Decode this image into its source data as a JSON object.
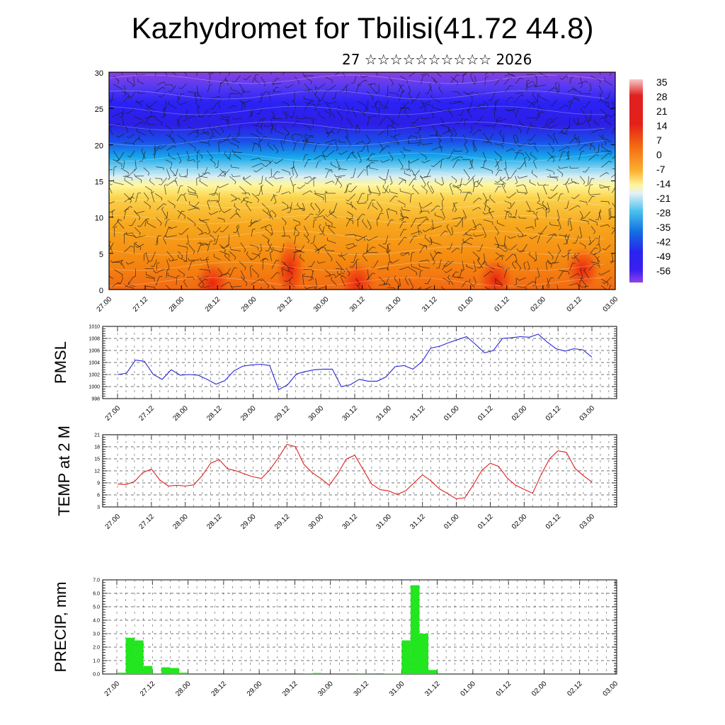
{
  "title": "Kazhydromet for Tbilisi(41.72 44.8)",
  "subtitle": "27 ☆☆☆☆☆☆☆☆☆☆ 2026",
  "colors": {
    "pmsl_line": "#2626d9",
    "temp_line": "#e02020",
    "precip_bar": "#22e61e"
  },
  "chart_data": [
    {
      "type": "heatmap",
      "name": "vertical cross-section",
      "title": "",
      "ylabel": "",
      "ylim": [
        0,
        30
      ],
      "yticks": [
        "0",
        "5",
        "10",
        "15",
        "20",
        "25",
        "30"
      ],
      "time_labels": [
        "27.00",
        "27.12",
        "28.00",
        "28.12",
        "29.00",
        "29.12",
        "30.00",
        "30.12",
        "31.00",
        "31.12",
        "01.00",
        "01.12",
        "02.00",
        "02.12",
        "03.00"
      ],
      "colorbar": {
        "labels": [
          "35",
          "28",
          "21",
          "14",
          "7",
          "0",
          "-7",
          "-14",
          "-21",
          "-28",
          "-35",
          "-42",
          "-49",
          "-56"
        ],
        "range": [
          -60,
          38
        ]
      }
    },
    {
      "type": "line",
      "name": "PMSL",
      "ylabel": "PMSL",
      "ylim": [
        998,
        1010
      ],
      "yticks": [
        "998",
        "1000",
        "1002",
        "1004",
        "1006",
        "1008",
        "1010"
      ],
      "x_labels": [
        "27.00",
        "27.12",
        "28.00",
        "28.12",
        "29.00",
        "29.12",
        "30.00",
        "30.12",
        "31.00",
        "31.12",
        "01.00",
        "01.12",
        "02.00",
        "02.12",
        "03.00"
      ],
      "values": [
        1002.0,
        1002.2,
        1004.4,
        1004.2,
        1002.0,
        1001.2,
        1002.8,
        1001.9,
        1002.0,
        1001.9,
        1001.2,
        1000.4,
        1001.0,
        1002.6,
        1003.4,
        1003.6,
        1003.7,
        1003.5,
        999.5,
        1000.3,
        1002.1,
        1002.5,
        1002.8,
        1002.9,
        1002.9,
        1000.0,
        1000.3,
        1001.2,
        1000.9,
        1000.9,
        1001.6,
        1003.3,
        1003.5,
        1002.9,
        1004.1,
        1006.4,
        1006.7,
        1007.3,
        1007.8,
        1008.3,
        1007.0,
        1005.6,
        1006.0,
        1008.0,
        1008.1,
        1008.3,
        1008.2,
        1008.7,
        1007.4,
        1006.3,
        1005.9,
        1006.3,
        1006.1,
        1004.9
      ]
    },
    {
      "type": "line",
      "name": "TEMP at 2 M",
      "ylabel": "TEMP at 2 M",
      "ylim": [
        3,
        21
      ],
      "yticks": [
        "3",
        "6",
        "9",
        "12",
        "15",
        "18",
        "21"
      ],
      "x_labels": [
        "27.00",
        "27.12",
        "28.00",
        "28.12",
        "29.00",
        "29.12",
        "30.00",
        "30.12",
        "31.00",
        "31.12",
        "01.00",
        "01.12",
        "02.00",
        "02.12",
        "03.00"
      ],
      "values": [
        8.7,
        8.6,
        9.3,
        11.6,
        12.4,
        9.7,
        8.2,
        8.4,
        8.2,
        8.5,
        10.8,
        13.9,
        14.8,
        12.5,
        12.0,
        11.2,
        10.5,
        10.1,
        12.3,
        15.3,
        18.6,
        18.0,
        13.6,
        11.5,
        10.1,
        8.4,
        11.3,
        14.9,
        15.9,
        12.3,
        8.7,
        7.3,
        7.0,
        6.1,
        7.0,
        9.0,
        11.0,
        9.5,
        7.5,
        6.3,
        5.0,
        5.3,
        8.5,
        12.1,
        13.9,
        13.1,
        10.2,
        8.4,
        7.4,
        6.4,
        11.0,
        15.0,
        17.0,
        16.6,
        12.6,
        10.8,
        9.2
      ]
    },
    {
      "type": "bar",
      "name": "PRECIP, mm",
      "ylabel": "PRECIP, mm",
      "ylim": [
        0,
        7
      ],
      "yticks": [
        "0.0",
        "1.0",
        "2.0",
        "3.0",
        "4.0",
        "5.0",
        "6.0",
        "7.0"
      ],
      "x_labels": [
        "27.00",
        "27.12",
        "28.00",
        "28.12",
        "29.00",
        "29.12",
        "30.00",
        "30.12",
        "31.00",
        "31.12",
        "01.00",
        "01.12",
        "02.00",
        "02.12",
        "03.00"
      ],
      "values": [
        0.1,
        2.7,
        2.5,
        0.6,
        0.05,
        0.5,
        0.45,
        0.1,
        0,
        0,
        0,
        0,
        0,
        0,
        0,
        0,
        0,
        0,
        0,
        0,
        0,
        0.05,
        0.08,
        0,
        0,
        0,
        0,
        0.05,
        0.06,
        0,
        0.04,
        0.04,
        2.5,
        6.6,
        3.0,
        0.3,
        0,
        0,
        0,
        0,
        0,
        0,
        0,
        0,
        0,
        0,
        0,
        0,
        0,
        0,
        0,
        0,
        0,
        0,
        0,
        0,
        0
      ]
    }
  ]
}
